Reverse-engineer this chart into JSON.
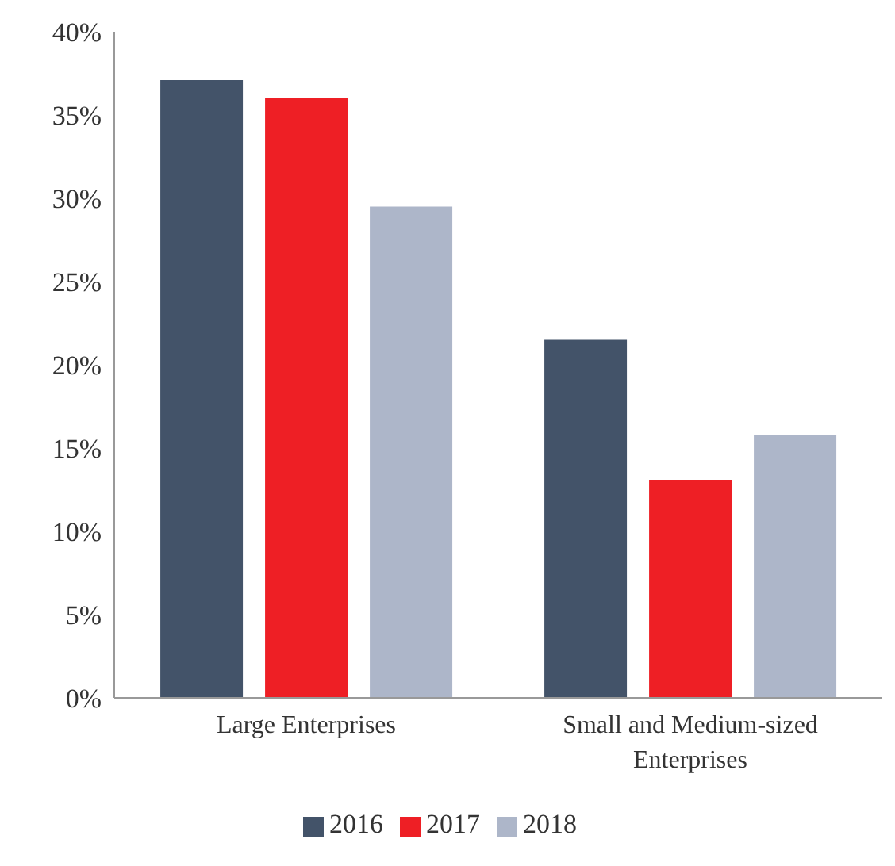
{
  "chart_data": {
    "type": "bar",
    "categories": [
      "Large Enterprises",
      "Small and Medium-sized Enterprises"
    ],
    "series": [
      {
        "name": "2016",
        "color": "#435369",
        "values": [
          37.1,
          21.5
        ]
      },
      {
        "name": "2017",
        "color": "#ee1f25",
        "values": [
          36.0,
          13.1
        ]
      },
      {
        "name": "2018",
        "color": "#adb6c9",
        "values": [
          29.5,
          15.8
        ]
      }
    ],
    "ylim": [
      0,
      40
    ],
    "yticks": [
      {
        "value": 0,
        "label": "0%"
      },
      {
        "value": 5,
        "label": "5%"
      },
      {
        "value": 10,
        "label": "10%"
      },
      {
        "value": 15,
        "label": "15%"
      },
      {
        "value": 20,
        "label": "20%"
      },
      {
        "value": 25,
        "label": "25%"
      },
      {
        "value": 30,
        "label": "30%"
      },
      {
        "value": 35,
        "label": "35%"
      },
      {
        "value": 40,
        "label": "40%"
      }
    ],
    "grid": false,
    "legend": "bottom"
  }
}
